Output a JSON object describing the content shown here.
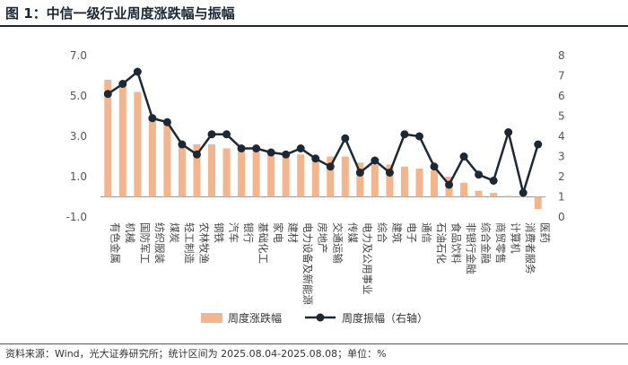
{
  "title": "图 1：中信一级行业周度涨跌幅与振幅",
  "footer": "资料来源：Wind，光大证券研究所；统计区间为 2025.08.04-2025.08.08；单位：%",
  "colors": {
    "bar": "#f2b58d",
    "line": "#1d2834",
    "axis": "#999999"
  },
  "chart_data": {
    "type": "bar",
    "categories": [
      "有色金属",
      "机械",
      "国防军工",
      "纺织服装",
      "煤炭",
      "轻工制造",
      "农林牧渔",
      "钢铁",
      "汽车",
      "银行",
      "基础化工",
      "家电",
      "建材",
      "电力设备及新能源",
      "房地产",
      "交通运输",
      "传媒",
      "电力及公用事业",
      "综合",
      "建筑",
      "电子",
      "通信",
      "石油石化",
      "食品饮料",
      "非银行金融",
      "综合金融",
      "商贸零售",
      "计算机",
      "消费者服务",
      "医药"
    ],
    "series": [
      {
        "name": "周度涨跌幅",
        "type": "bar",
        "axis": "left",
        "values": [
          5.8,
          5.5,
          5.2,
          3.9,
          3.6,
          2.7,
          2.6,
          2.6,
          2.4,
          2.3,
          2.3,
          2.2,
          2.1,
          2.1,
          2.0,
          2.0,
          2.0,
          1.7,
          1.6,
          1.6,
          1.5,
          1.4,
          1.3,
          1.0,
          0.7,
          0.3,
          0.2,
          0.05,
          0.02,
          -0.6
        ]
      },
      {
        "name": "周度振幅（右轴）",
        "type": "line",
        "axis": "right",
        "values": [
          6.1,
          6.6,
          7.2,
          4.9,
          4.7,
          3.6,
          3.1,
          4.1,
          4.1,
          3.4,
          3.4,
          3.2,
          3.1,
          3.4,
          2.9,
          2.5,
          3.9,
          2.2,
          2.8,
          2.2,
          4.1,
          4.0,
          2.5,
          1.6,
          3.0,
          2.1,
          1.8,
          4.2,
          1.2,
          3.6
        ]
      }
    ],
    "left_axis": {
      "ylim": [
        -1,
        7
      ],
      "ticks": [
        "7.0",
        "5.0",
        "3.0",
        "1.0",
        "-1.0"
      ],
      "tick_values": [
        7,
        5,
        3,
        1,
        -1
      ]
    },
    "right_axis": {
      "ylim": [
        0,
        8
      ],
      "ticks": [
        "8",
        "7",
        "6",
        "5",
        "4",
        "3",
        "2",
        "1",
        "0"
      ],
      "tick_values": [
        8,
        7,
        6,
        5,
        4,
        3,
        2,
        1,
        0
      ]
    },
    "grid": false,
    "legend_position": "bottom"
  }
}
